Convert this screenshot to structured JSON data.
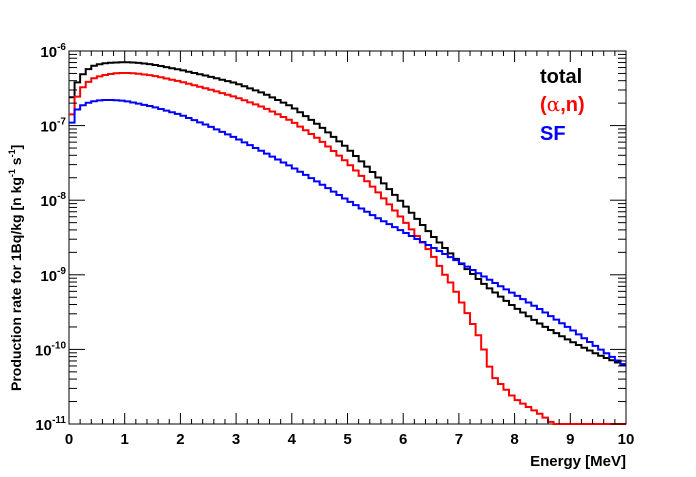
{
  "chart_data": {
    "type": "line",
    "title": "",
    "xlabel": "Energy [MeV]",
    "ylabel": {
      "base": "Production rate for 1Bq/kg [n kg",
      "exp1": "-1",
      "mid": " s",
      "exp2": "-1",
      "end": "]"
    },
    "xlim": [
      0,
      10
    ],
    "ylim": [
      1e-11,
      1e-06
    ],
    "yscale": "log",
    "grid": false,
    "legend_position": "top-right",
    "x_ticks": [
      {
        "value": 0,
        "label": "0"
      },
      {
        "value": 1,
        "label": "1"
      },
      {
        "value": 2,
        "label": "2"
      },
      {
        "value": 3,
        "label": "3"
      },
      {
        "value": 4,
        "label": "4"
      },
      {
        "value": 5,
        "label": "5"
      },
      {
        "value": 6,
        "label": "6"
      },
      {
        "value": 7,
        "label": "7"
      },
      {
        "value": 8,
        "label": "8"
      },
      {
        "value": 9,
        "label": "9"
      },
      {
        "value": 10,
        "label": "10"
      }
    ],
    "y_ticks": [
      {
        "value": 1e-11,
        "base": "10",
        "exp": "-11"
      },
      {
        "value": 1e-10,
        "base": "10",
        "exp": "-10"
      },
      {
        "value": 1e-09,
        "base": "10",
        "exp": "-9"
      },
      {
        "value": 1e-08,
        "base": "10",
        "exp": "-8"
      },
      {
        "value": 1e-07,
        "base": "10",
        "exp": "-7"
      },
      {
        "value": 1e-06,
        "base": "10",
        "exp": "-6"
      }
    ],
    "series": [
      {
        "name": "total",
        "color": "#000000",
        "x": [
          0.0,
          0.1,
          0.2,
          0.4,
          0.6,
          0.8,
          1.0,
          1.2,
          1.5,
          2.0,
          2.5,
          3.0,
          3.5,
          4.0,
          4.5,
          5.0,
          5.5,
          6.0,
          6.5,
          7.0,
          7.5,
          8.0,
          8.5,
          9.0,
          9.5,
          10.0
        ],
        "y": [
          1.8e-07,
          3.2e-07,
          4.5e-07,
          6.2e-07,
          6.8e-07,
          7e-07,
          7.1e-07,
          7e-07,
          6.6e-07,
          5.6e-07,
          4.6e-07,
          3.7e-07,
          2.7e-07,
          1.8e-07,
          1e-07,
          5e-08,
          2.2e-08,
          9e-09,
          3.5e-09,
          1.5e-09,
          7e-10,
          3.7e-10,
          2.1e-10,
          1.3e-10,
          8.5e-11,
          6e-11
        ]
      },
      {
        "name": "(α,n)",
        "color": "#ff0000",
        "x": [
          0.0,
          0.1,
          0.2,
          0.4,
          0.6,
          0.8,
          1.0,
          1.2,
          1.5,
          2.0,
          2.5,
          3.0,
          3.5,
          4.0,
          4.5,
          5.0,
          5.5,
          6.0,
          6.5,
          6.75,
          6.9,
          7.0,
          7.2,
          7.4,
          7.6,
          8.0,
          8.5,
          8.7,
          10.0
        ],
        "y": [
          1e-07,
          2e-07,
          3e-07,
          4.2e-07,
          4.7e-07,
          5e-07,
          5.1e-07,
          5e-07,
          4.7e-07,
          3.9e-07,
          3.1e-07,
          2.4e-07,
          1.75e-07,
          1.15e-07,
          6.5e-08,
          3.2e-08,
          1.4e-08,
          5.5e-09,
          2e-09,
          1e-09,
          7e-10,
          5e-10,
          2.6e-10,
          1.3e-10,
          4.5e-11,
          2.2e-11,
          1.3e-11,
          1e-11,
          1e-11
        ]
      },
      {
        "name": "SF",
        "color": "#0000ff",
        "x": [
          0.0,
          0.1,
          0.2,
          0.4,
          0.6,
          0.8,
          1.0,
          1.5,
          2.0,
          2.5,
          3.0,
          3.5,
          4.0,
          4.5,
          5.0,
          5.5,
          6.0,
          6.5,
          7.0,
          7.5,
          8.0,
          8.5,
          9.0,
          9.5,
          10.0
        ],
        "y": [
          8e-08,
          1.5e-07,
          1.8e-07,
          2.1e-07,
          2.2e-07,
          2.2e-07,
          2.15e-07,
          1.8e-07,
          1.4e-07,
          1e-07,
          6.8e-08,
          4.4e-08,
          2.8e-08,
          1.7e-08,
          1e-08,
          6e-09,
          3.8e-09,
          2.4e-09,
          1.5e-09,
          9e-10,
          5.5e-10,
          3.3e-10,
          1.9e-10,
          1.05e-10,
          6e-11
        ]
      }
    ],
    "legend": [
      {
        "label": "total",
        "color": "#000000"
      },
      {
        "label_open": "(",
        "label_symbol": "α",
        "label_close": ",n)",
        "color": "#ff0000"
      },
      {
        "label": "SF",
        "color": "#0000ff"
      }
    ]
  }
}
